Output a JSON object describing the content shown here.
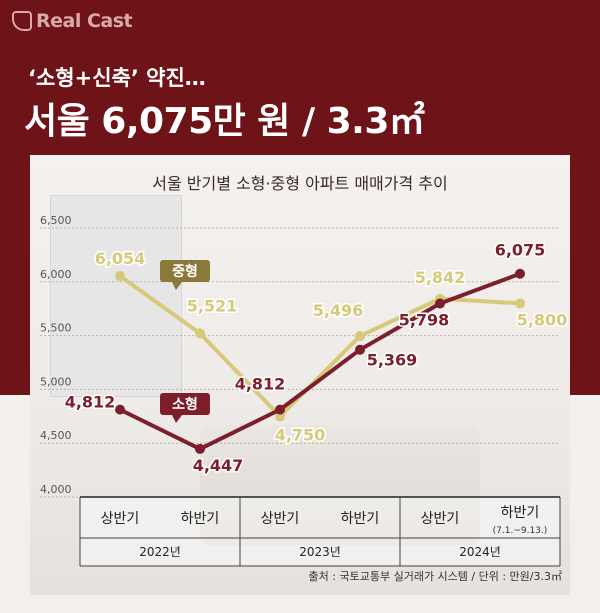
{
  "brand": {
    "name": "Real Cast"
  },
  "headline": {
    "line1": "‘소형+신축’ 약진…",
    "line2": "서울 6,075만 원 / 3.3㎡"
  },
  "colors": {
    "background": "#6e1418",
    "small": "#7d1f2a",
    "medium": "#d6c97a"
  },
  "chart_data": {
    "type": "line",
    "title": "서울 반기별 소형·중형 아파트 매매가격 추이",
    "categories": [
      "상반기",
      "하반기",
      "상반기",
      "하반기",
      "상반기",
      "하반기"
    ],
    "category_notes": [
      "",
      "",
      "",
      "",
      "",
      "(7.1.~9.13.)"
    ],
    "groups": [
      {
        "label": "2022년",
        "span": 2
      },
      {
        "label": "2023년",
        "span": 2
      },
      {
        "label": "2024년",
        "span": 2
      }
    ],
    "yticks": [
      "4,000",
      "4,500",
      "5,000",
      "5,500",
      "6,000",
      "6,500"
    ],
    "ylim": [
      4000,
      6500
    ],
    "series": [
      {
        "name": "중형",
        "key": "medium",
        "values": [
          6054,
          5521,
          4750,
          5496,
          5842,
          5800
        ],
        "labels": [
          "6,054",
          "5,521",
          "4,750",
          "5,496",
          "5,842",
          "5,800"
        ]
      },
      {
        "name": "소형",
        "key": "small",
        "values": [
          4812,
          4447,
          4812,
          5369,
          5798,
          6075
        ],
        "labels": [
          "4,812",
          "4,447",
          "4,812",
          "5,369",
          "5,798",
          "6,075"
        ]
      }
    ],
    "source": "출처 : 국토교통부 실거래가 시스템 / 단위 : 만원/3.3㎡"
  }
}
